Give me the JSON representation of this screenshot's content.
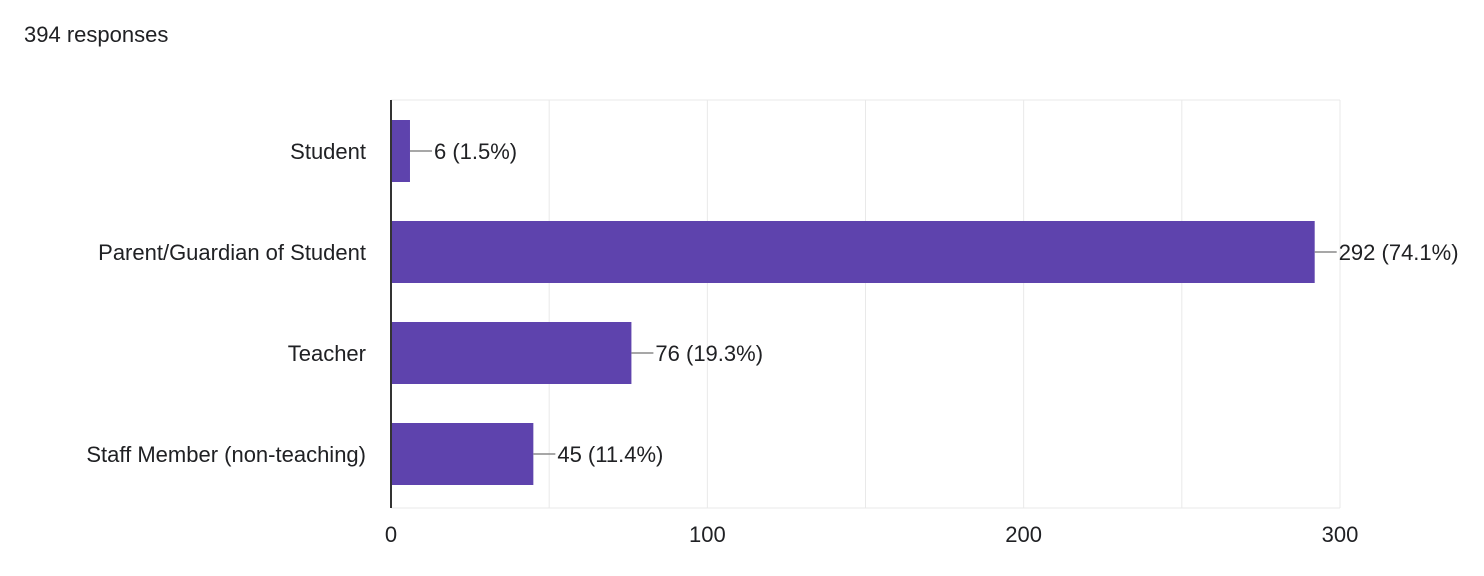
{
  "summary": {
    "responses_label": "394 responses"
  },
  "colors": {
    "bar": "#5e43ad",
    "grid": "#e9e9e9",
    "axis": "#333333",
    "leader": "#8a8a8a",
    "text": "#202124"
  },
  "chart_data": {
    "type": "bar",
    "orientation": "horizontal",
    "total_responses": 394,
    "categories": [
      "Student",
      "Parent/Guardian of Student",
      "Teacher",
      "Staff Member (non-teaching)"
    ],
    "values": [
      6,
      292,
      76,
      45
    ],
    "data_labels": [
      "6 (1.5%)",
      "292 (74.1%)",
      "76 (19.3%)",
      "45 (11.4%)"
    ],
    "xlim": [
      0,
      300
    ],
    "xticks": [
      0,
      100,
      200,
      300
    ],
    "grid": true,
    "legend": "none"
  }
}
